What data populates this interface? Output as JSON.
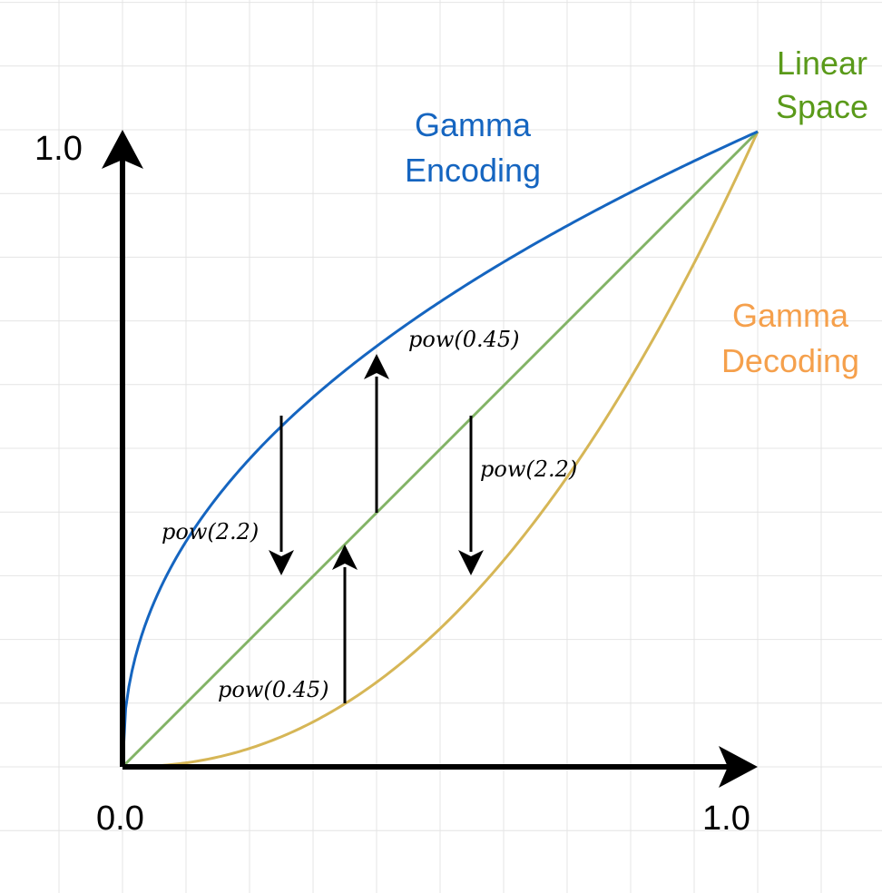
{
  "axes": {
    "x_min_label": "0.0",
    "x_max_label": "1.0",
    "y_max_label": "1.0"
  },
  "curves": {
    "encoding": {
      "label_line1": "Gamma",
      "label_line2": "Encoding",
      "exponent": 0.45,
      "color": "#1565c0"
    },
    "linear": {
      "label_line1": "Linear",
      "label_line2": "Space",
      "exponent": 1.0,
      "color": "#82b366"
    },
    "decoding": {
      "label_line1": "Gamma",
      "label_line2": "Decoding",
      "exponent": 2.2,
      "color": "#d6b656",
      "label_color": "#f5a04c"
    }
  },
  "operations": {
    "top_up": "pow(0.45)",
    "left_down": "pow(2.2)",
    "right_down": "pow(2.2)",
    "bottom_up": "pow(0.45)"
  },
  "colors": {
    "grid": "#e4e4e4",
    "axis": "#000000",
    "encoding_label": "#1565c0",
    "linear_label": "#5a9a1a"
  }
}
